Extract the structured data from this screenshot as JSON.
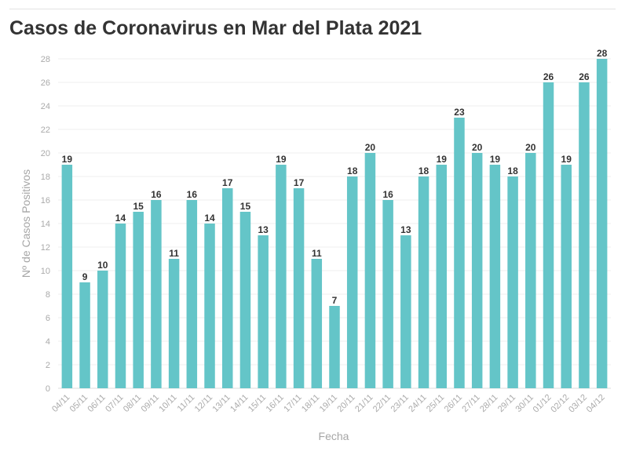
{
  "chart_data": {
    "type": "bar",
    "title": "Casos de Coronavirus en Mar del Plata 2021",
    "xlabel": "Fecha",
    "ylabel": "Nº de Casos Positivos",
    "categories": [
      "04/11",
      "05/11",
      "06/11",
      "07/11",
      "08/11",
      "09/11",
      "10/11",
      "11/11",
      "12/11",
      "13/11",
      "14/11",
      "15/11",
      "16/11",
      "17/11",
      "18/11",
      "19/11",
      "20/11",
      "21/11",
      "22/11",
      "23/11",
      "24/11",
      "25/11",
      "26/11",
      "27/11",
      "28/11",
      "29/11",
      "30/11",
      "01/12",
      "02/12",
      "03/12",
      "04/12"
    ],
    "values": [
      19,
      9,
      10,
      14,
      15,
      16,
      11,
      16,
      14,
      17,
      15,
      13,
      19,
      17,
      11,
      7,
      18,
      20,
      16,
      13,
      18,
      19,
      23,
      20,
      19,
      18,
      20,
      26,
      19,
      26,
      28
    ],
    "ylim": [
      0,
      28
    ],
    "yticks": [
      0,
      2,
      4,
      6,
      8,
      10,
      12,
      14,
      16,
      18,
      20,
      22,
      24,
      26,
      28
    ],
    "grid": true,
    "bar_color": "#64c5c8",
    "data_labels": true
  }
}
